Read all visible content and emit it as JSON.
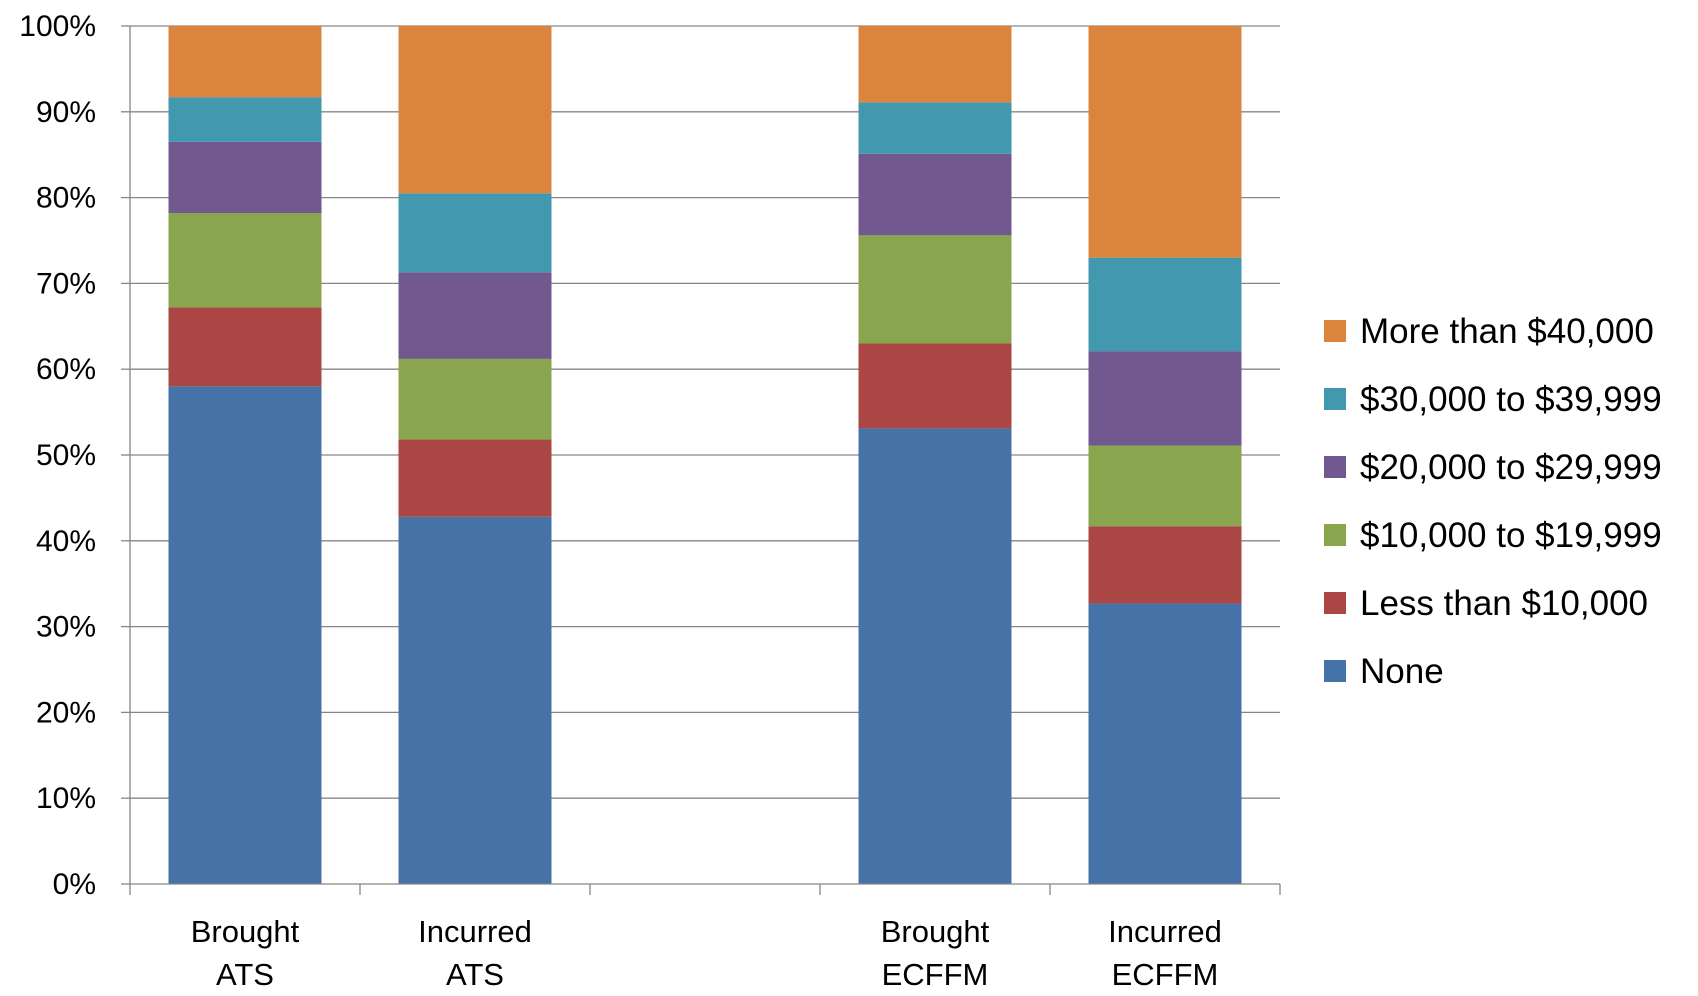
{
  "chart_data": {
    "type": "bar",
    "stacked": true,
    "percent_stacked": true,
    "groups": [
      [
        "Brought ATS",
        "Incurred ATS"
      ],
      [
        "Brought ECFFM",
        "Incurred ECFFM"
      ]
    ],
    "categories": [
      [
        "Brought",
        "ATS"
      ],
      [
        "Incurred",
        "ATS"
      ],
      null,
      [
        "Brought",
        "ECFFM"
      ],
      [
        "Incurred",
        "ECFFM"
      ]
    ],
    "series": [
      {
        "name": "None",
        "color": "#4572A7",
        "values": [
          58.0,
          42.8,
          null,
          53.1,
          32.7
        ]
      },
      {
        "name": "Less than $10,000",
        "color": "#AA4643",
        "values": [
          9.2,
          9.0,
          null,
          9.9,
          9.0
        ]
      },
      {
        "name": "$10,000 to $19,999",
        "color": "#89A54E",
        "values": [
          11.0,
          9.4,
          null,
          12.6,
          9.4
        ]
      },
      {
        "name": "$20,000 to $29,999",
        "color": "#71588F",
        "values": [
          8.3,
          10.1,
          null,
          9.5,
          11.0
        ]
      },
      {
        "name": "$30,000 to $39,999",
        "color": "#4198AF",
        "values": [
          5.2,
          9.2,
          null,
          6.0,
          10.9
        ]
      },
      {
        "name": "More than $40,000",
        "color": "#DB843D",
        "values": [
          8.3,
          19.5,
          null,
          8.9,
          27.0
        ]
      }
    ],
    "yticks": [
      "0%",
      "10%",
      "20%",
      "30%",
      "40%",
      "50%",
      "60%",
      "70%",
      "80%",
      "90%",
      "100%"
    ],
    "ylim": [
      0,
      100
    ],
    "grid": true,
    "legend_position": "right",
    "legend_order": "reversed",
    "title": "",
    "xlabel": "",
    "ylabel": ""
  }
}
